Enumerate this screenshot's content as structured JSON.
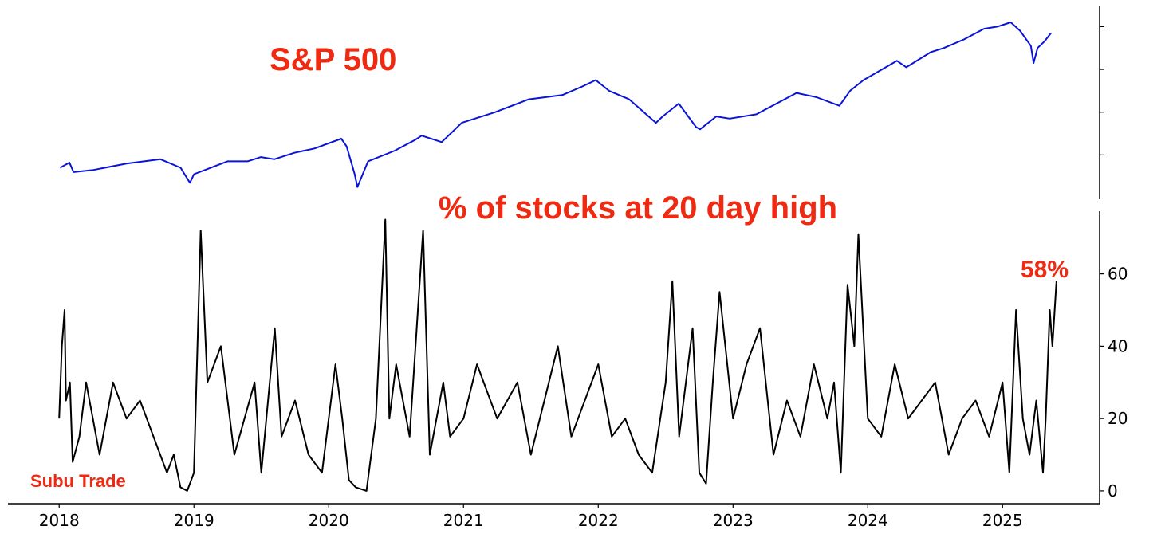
{
  "chart_data": [
    {
      "type": "line",
      "title": "S&P 500",
      "xlabel": "",
      "ylabel": "",
      "y_tick_labels_shown": false,
      "xlim": [
        2017.98,
        2025.4
      ],
      "ylim": [
        2150,
        6250
      ],
      "grid": false,
      "colors": {
        "line": "#0a14d8",
        "title": "#ee2a12"
      },
      "series": [
        {
          "x": [
            2018.0,
            2018.07,
            2018.1,
            2018.25,
            2018.5,
            2018.75,
            2018.9,
            2018.97,
            2019.0,
            2019.25,
            2019.4,
            2019.5,
            2019.6,
            2019.75,
            2019.9,
            2020.1,
            2020.14,
            2020.2,
            2020.22,
            2020.3,
            2020.5,
            2020.65,
            2020.7,
            2020.85,
            2021.0,
            2021.25,
            2021.5,
            2021.75,
            2021.9,
            2022.0,
            2022.1,
            2022.25,
            2022.45,
            2022.5,
            2022.62,
            2022.75,
            2022.78,
            2022.9,
            2023.0,
            2023.2,
            2023.5,
            2023.65,
            2023.82,
            2023.9,
            2024.0,
            2024.25,
            2024.32,
            2024.5,
            2024.6,
            2024.75,
            2024.9,
            2025.0,
            2025.1,
            2025.17,
            2025.25,
            2025.27,
            2025.3,
            2025.35,
            2025.4
          ],
          "y": [
            2700,
            2820,
            2600,
            2650,
            2800,
            2900,
            2700,
            2350,
            2550,
            2850,
            2850,
            2950,
            2900,
            3050,
            3150,
            3380,
            3200,
            2550,
            2250,
            2850,
            3100,
            3350,
            3450,
            3300,
            3750,
            4000,
            4300,
            4400,
            4600,
            4750,
            4500,
            4300,
            3750,
            3900,
            4200,
            3650,
            3600,
            3900,
            3850,
            3950,
            4450,
            4350,
            4150,
            4500,
            4750,
            5200,
            5050,
            5400,
            5500,
            5700,
            5950,
            6000,
            6100,
            5900,
            5550,
            5150,
            5500,
            5650,
            5850
          ]
        }
      ]
    },
    {
      "type": "line",
      "title": "% of stocks at 20 day high",
      "xlabel": "",
      "ylabel": "",
      "x_tick_labels": [
        "2018",
        "2019",
        "2020",
        "2021",
        "2022",
        "2023",
        "2024",
        "2025"
      ],
      "y_tick_labels": [
        "0",
        "20",
        "40",
        "60"
      ],
      "xlim": [
        2017.62,
        2025.72
      ],
      "ylim": [
        -2,
        76
      ],
      "grid": false,
      "colors": {
        "line": "#000000",
        "title": "#ee2a12"
      },
      "series": [
        {
          "x": [
            2018.0,
            2018.02,
            2018.04,
            2018.05,
            2018.08,
            2018.1,
            2018.15,
            2018.2,
            2018.3,
            2018.4,
            2018.5,
            2018.6,
            2018.7,
            2018.8,
            2018.85,
            2018.9,
            2018.95,
            2019.0,
            2019.05,
            2019.1,
            2019.2,
            2019.3,
            2019.45,
            2019.5,
            2019.6,
            2019.65,
            2019.75,
            2019.85,
            2019.95,
            2020.05,
            2020.1,
            2020.15,
            2020.2,
            2020.28,
            2020.35,
            2020.42,
            2020.45,
            2020.5,
            2020.6,
            2020.7,
            2020.75,
            2020.85,
            2020.9,
            2021.0,
            2021.1,
            2021.25,
            2021.4,
            2021.5,
            2021.6,
            2021.7,
            2021.8,
            2021.9,
            2022.0,
            2022.1,
            2022.2,
            2022.3,
            2022.4,
            2022.5,
            2022.55,
            2022.6,
            2022.7,
            2022.75,
            2022.8,
            2022.85,
            2022.9,
            2023.0,
            2023.1,
            2023.2,
            2023.3,
            2023.4,
            2023.5,
            2023.6,
            2023.7,
            2023.75,
            2023.8,
            2023.85,
            2023.9,
            2023.93,
            2024.0,
            2024.1,
            2024.2,
            2024.3,
            2024.4,
            2024.5,
            2024.6,
            2024.7,
            2024.8,
            2024.9,
            2025.0,
            2025.05,
            2025.1,
            2025.15,
            2025.2,
            2025.25,
            2025.3,
            2025.32,
            2025.35,
            2025.37,
            2025.4
          ],
          "y": [
            20,
            40,
            50,
            25,
            30,
            8,
            15,
            30,
            10,
            30,
            20,
            25,
            15,
            5,
            10,
            1,
            0,
            5,
            72,
            30,
            40,
            10,
            30,
            5,
            45,
            15,
            25,
            10,
            5,
            35,
            20,
            3,
            1,
            0,
            20,
            75,
            20,
            35,
            15,
            72,
            10,
            30,
            15,
            20,
            35,
            20,
            30,
            10,
            25,
            40,
            15,
            25,
            35,
            15,
            20,
            10,
            5,
            30,
            58,
            15,
            45,
            5,
            2,
            30,
            55,
            20,
            35,
            45,
            10,
            25,
            15,
            35,
            20,
            30,
            5,
            57,
            40,
            71,
            20,
            15,
            35,
            20,
            25,
            30,
            10,
            20,
            25,
            15,
            30,
            5,
            50,
            20,
            10,
            25,
            5,
            20,
            50,
            40,
            58
          ],
          "end_label": "58%"
        }
      ]
    }
  ],
  "watermark": "Subu Trade"
}
